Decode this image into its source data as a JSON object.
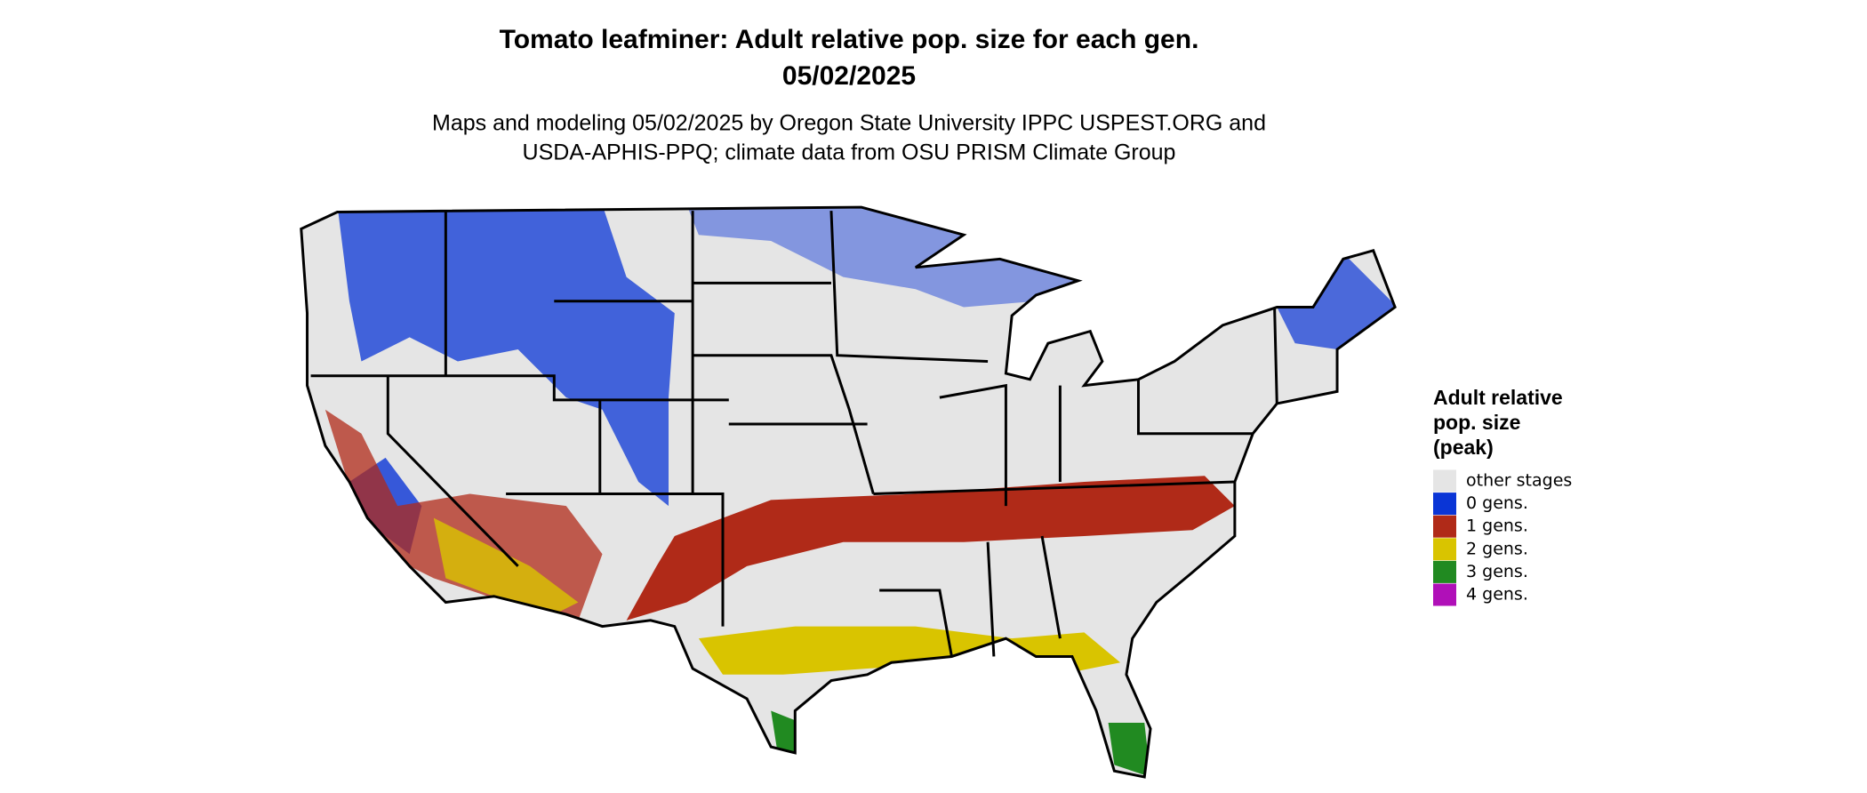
{
  "title": [
    "Tomato leafminer: Adult relative pop. size for each gen.",
    "05/02/2025"
  ],
  "subtitle": [
    "Maps and modeling 05/02/2025 by Oregon State University IPPC USPEST.ORG and",
    "USDA-APHIS-PPQ; climate data from OSU PRISM Climate Group"
  ],
  "legend": {
    "title": [
      "Adult relative",
      "pop. size",
      "(peak)"
    ],
    "items": [
      {
        "label": "other stages",
        "color": "#e5e5e5"
      },
      {
        "label": "0 gens.",
        "color": "#0a35d6"
      },
      {
        "label": "1 gens.",
        "color": "#b02a18"
      },
      {
        "label": "2 gens.",
        "color": "#d9c400"
      },
      {
        "label": "3 gens.",
        "color": "#218a21"
      },
      {
        "label": "4 gens.",
        "color": "#b010b8"
      }
    ]
  }
}
